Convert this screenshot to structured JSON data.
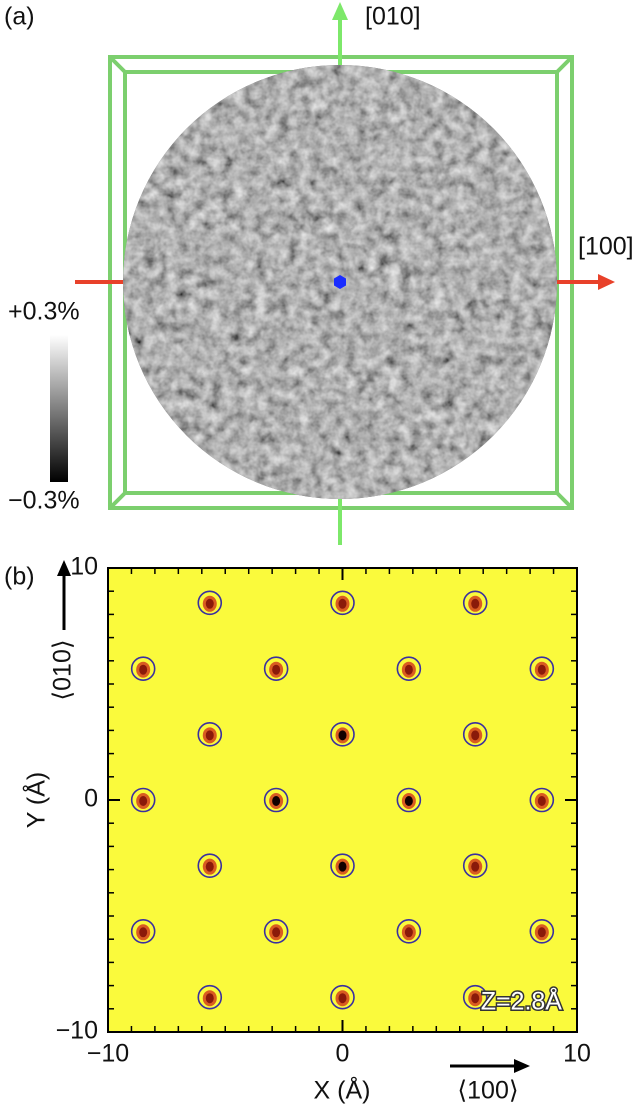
{
  "panel_a": {
    "label": "(a)",
    "axis_labels": [
      "[010]",
      "[100]"
    ],
    "colorbar": {
      "max_label": "+0.3%",
      "min_label": "−0.3%"
    }
  },
  "chart_data": {
    "type": "scatter",
    "panel_label": "(b)",
    "xlabel": "X (Å)",
    "ylabel": "Y (Å)",
    "direction_labels": [
      "⟨100⟩",
      "⟨010⟩"
    ],
    "annotation": "Z=2.8Å",
    "x": [
      -5.66,
      0,
      5.66,
      -8.5,
      -2.83,
      2.83,
      8.5,
      -5.66,
      0,
      5.66,
      -8.5,
      -2.83,
      2.83,
      8.5,
      -5.66,
      0,
      5.66,
      -8.5,
      -2.83,
      2.83,
      8.5,
      -5.66,
      0,
      5.66
    ],
    "y": [
      8.5,
      8.5,
      8.5,
      5.66,
      5.66,
      5.66,
      5.66,
      2.83,
      2.83,
      2.83,
      0,
      0,
      0,
      0,
      -2.83,
      -2.83,
      -2.83,
      -5.66,
      -5.66,
      -5.66,
      -5.66,
      -8.5,
      -8.5,
      -8.5
    ],
    "xlim": [
      -10,
      10
    ],
    "ylim": [
      -10,
      10
    ],
    "xticks": [
      {
        "value": -10,
        "label": "−10"
      },
      0,
      10
    ],
    "yticks": [
      {
        "value": -10,
        "label": "−10"
      },
      0,
      10
    ],
    "minor_ticks": [
      -9,
      -8,
      -7,
      -6,
      -5,
      -4,
      -3,
      -2,
      -1,
      1,
      2,
      3,
      4,
      5,
      6,
      7,
      8,
      9
    ],
    "marker_color": "#3a2fa0",
    "background": "#fafa3c"
  }
}
